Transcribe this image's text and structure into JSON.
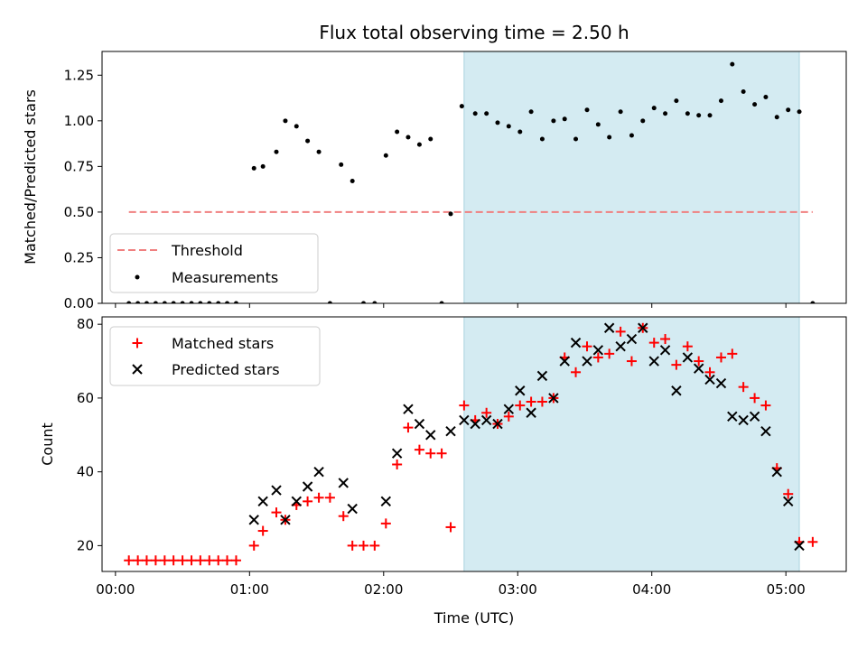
{
  "chart_data": [
    {
      "type": "scatter",
      "panel": "ratio",
      "title": "Flux total observing time = 2.50 h",
      "ylabel": "Matched/Predicted stars",
      "xlabel": "",
      "xlim": [
        -0.1,
        5.45
      ],
      "ylim": [
        0,
        1.38
      ],
      "yticks": [
        0.0,
        0.25,
        0.5,
        0.75,
        1.0,
        1.25
      ],
      "ytick_labels": [
        "0.00",
        "0.25",
        "0.50",
        "0.75",
        "1.00",
        "1.25"
      ],
      "shaded_region": {
        "start": 2.6,
        "end": 5.1,
        "color": "#d4ebf2"
      },
      "threshold": {
        "name": "Threshold",
        "value": 0.5,
        "x_start": 0.1,
        "x_end": 5.2,
        "color": "#f08080"
      },
      "legend": [
        "Threshold",
        "Measurements"
      ],
      "series": [
        {
          "name": "Measurements",
          "x": [
            0.1,
            0.167,
            0.233,
            0.3,
            0.367,
            0.433,
            0.5,
            0.567,
            0.633,
            0.7,
            0.767,
            0.833,
            0.9,
            1.033,
            1.1,
            1.2,
            1.267,
            1.35,
            1.433,
            1.517,
            1.6,
            1.683,
            1.767,
            1.85,
            1.933,
            2.017,
            2.1,
            2.183,
            2.267,
            2.35,
            2.433,
            2.5,
            2.583,
            2.683,
            2.767,
            2.85,
            2.933,
            3.017,
            3.1,
            3.183,
            3.267,
            3.35,
            3.433,
            3.517,
            3.6,
            3.683,
            3.767,
            3.85,
            3.933,
            4.017,
            4.1,
            4.183,
            4.267,
            4.35,
            4.433,
            4.517,
            4.6,
            4.683,
            4.767,
            4.85,
            4.933,
            5.017,
            5.1,
            5.2
          ],
          "y": [
            0,
            0,
            0,
            0,
            0,
            0,
            0,
            0,
            0,
            0,
            0,
            0,
            0,
            0.74,
            0.75,
            0.83,
            1.0,
            0.97,
            0.89,
            0.83,
            0,
            0.76,
            0.67,
            0,
            0,
            0.81,
            0.94,
            0.91,
            0.87,
            0.9,
            0,
            0.49,
            1.08,
            1.04,
            1.04,
            0.99,
            0.97,
            0.94,
            1.05,
            0.9,
            1.0,
            1.01,
            0.9,
            1.06,
            0.98,
            0.91,
            1.05,
            0.92,
            1.0,
            1.07,
            1.04,
            1.11,
            1.04,
            1.03,
            1.03,
            1.11,
            1.31,
            1.16,
            1.09,
            1.13,
            1.02,
            1.06,
            1.05,
            0
          ]
        }
      ]
    },
    {
      "type": "scatter",
      "panel": "count",
      "title": "",
      "xlabel": "Time (UTC)",
      "ylabel": "Count",
      "xlim": [
        -0.1,
        5.45
      ],
      "ylim": [
        13,
        82
      ],
      "yticks": [
        20,
        40,
        60,
        80
      ],
      "ytick_labels": [
        "20",
        "40",
        "60",
        "80"
      ],
      "xticks": [
        0,
        1,
        2,
        3,
        4,
        5
      ],
      "xtick_labels": [
        "00:00",
        "01:00",
        "02:00",
        "03:00",
        "04:00",
        "05:00"
      ],
      "shaded_region": {
        "start": 2.6,
        "end": 5.1,
        "color": "#d4ebf2"
      },
      "legend": [
        "Matched stars",
        "Predicted stars"
      ],
      "series": [
        {
          "name": "Matched stars",
          "marker": "+",
          "color": "#ff0000",
          "x": [
            0.1,
            0.167,
            0.233,
            0.3,
            0.367,
            0.433,
            0.5,
            0.567,
            0.633,
            0.7,
            0.767,
            0.833,
            0.9,
            1.033,
            1.1,
            1.2,
            1.267,
            1.35,
            1.433,
            1.517,
            1.6,
            1.7,
            1.767,
            1.85,
            1.933,
            2.017,
            2.1,
            2.183,
            2.267,
            2.35,
            2.433,
            2.5,
            2.6,
            2.683,
            2.767,
            2.85,
            2.933,
            3.017,
            3.1,
            3.183,
            3.267,
            3.35,
            3.433,
            3.517,
            3.6,
            3.683,
            3.767,
            3.85,
            3.933,
            4.017,
            4.1,
            4.183,
            4.267,
            4.35,
            4.433,
            4.517,
            4.6,
            4.683,
            4.767,
            4.85,
            4.933,
            5.017,
            5.1,
            5.2
          ],
          "y": [
            16,
            16,
            16,
            16,
            16,
            16,
            16,
            16,
            16,
            16,
            16,
            16,
            16,
            20,
            24,
            29,
            27,
            31,
            32,
            33,
            33,
            28,
            20,
            20,
            20,
            26,
            42,
            52,
            46,
            45,
            45,
            25,
            58,
            54,
            56,
            53,
            55,
            58,
            59,
            59,
            60,
            71,
            67,
            74,
            71,
            72,
            78,
            70,
            79,
            75,
            76,
            69,
            74,
            70,
            67,
            71,
            72,
            63,
            60,
            58,
            41,
            34,
            21,
            21
          ]
        },
        {
          "name": "Predicted stars",
          "marker": "x",
          "color": "#000000",
          "x": [
            1.033,
            1.1,
            1.2,
            1.267,
            1.35,
            1.433,
            1.517,
            1.7,
            1.767,
            2.017,
            2.1,
            2.183,
            2.267,
            2.35,
            2.5,
            2.6,
            2.683,
            2.767,
            2.85,
            2.933,
            3.017,
            3.1,
            3.183,
            3.267,
            3.35,
            3.433,
            3.517,
            3.6,
            3.683,
            3.767,
            3.85,
            3.933,
            4.017,
            4.1,
            4.183,
            4.267,
            4.35,
            4.433,
            4.517,
            4.6,
            4.683,
            4.767,
            4.85,
            4.933,
            5.017,
            5.1
          ],
          "y": [
            27,
            32,
            35,
            27,
            32,
            36,
            40,
            37,
            30,
            32,
            45,
            57,
            53,
            50,
            51,
            54,
            53,
            54,
            53,
            57,
            62,
            56,
            66,
            60,
            70,
            75,
            70,
            73,
            79,
            74,
            76,
            79,
            70,
            73,
            62,
            71,
            68,
            65,
            64,
            55,
            54,
            55,
            51,
            40,
            32,
            20
          ]
        }
      ]
    }
  ]
}
